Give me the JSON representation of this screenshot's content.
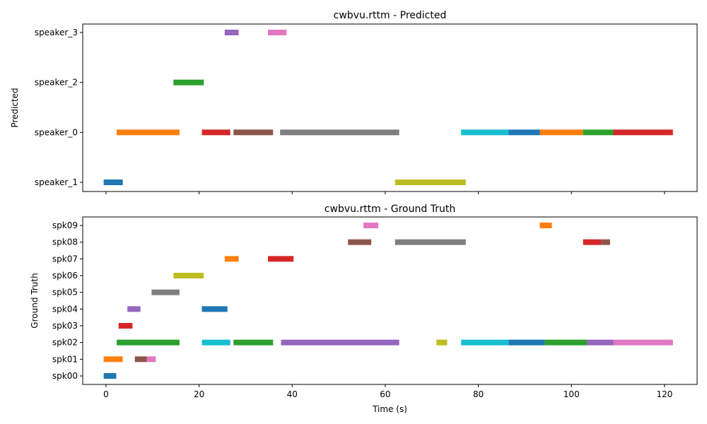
{
  "chart_data": [
    {
      "type": "timeline",
      "title": "cwbvu.rttm - Predicted",
      "xlabel": "",
      "ylabel": "Predicted",
      "xlim": [
        -5,
        127
      ],
      "x_ticks": [
        0,
        20,
        40,
        60,
        80,
        100,
        120
      ],
      "show_x_tick_labels": false,
      "categories": [
        "speaker_1",
        "speaker_0",
        "speaker_2",
        "speaker_3"
      ],
      "segments": [
        {
          "speaker": "speaker_3",
          "start": 25.5,
          "end": 28.5,
          "color": "#9467bd"
        },
        {
          "speaker": "speaker_3",
          "start": 34.8,
          "end": 38.8,
          "color": "#e377c2"
        },
        {
          "speaker": "speaker_2",
          "start": 14.5,
          "end": 21.0,
          "color": "#2ca02c"
        },
        {
          "speaker": "speaker_0",
          "start": 2.3,
          "end": 15.8,
          "color": "#ff7f0e"
        },
        {
          "speaker": "speaker_0",
          "start": 20.6,
          "end": 26.7,
          "color": "#d62728"
        },
        {
          "speaker": "speaker_0",
          "start": 27.4,
          "end": 35.9,
          "color": "#8c564b"
        },
        {
          "speaker": "speaker_0",
          "start": 37.4,
          "end": 63.0,
          "color": "#7f7f7f"
        },
        {
          "speaker": "speaker_0",
          "start": 76.3,
          "end": 86.5,
          "color": "#17becf"
        },
        {
          "speaker": "speaker_0",
          "start": 86.5,
          "end": 93.2,
          "color": "#1f77b4"
        },
        {
          "speaker": "speaker_0",
          "start": 93.2,
          "end": 102.5,
          "color": "#ff7f0e"
        },
        {
          "speaker": "speaker_0",
          "start": 102.5,
          "end": 109.0,
          "color": "#2ca02c"
        },
        {
          "speaker": "speaker_0",
          "start": 109.0,
          "end": 121.8,
          "color": "#d62728"
        },
        {
          "speaker": "speaker_1",
          "start": -0.5,
          "end": 3.6,
          "color": "#1f77b4"
        },
        {
          "speaker": "speaker_1",
          "start": 62.1,
          "end": 77.3,
          "color": "#bcbd22"
        }
      ]
    },
    {
      "type": "timeline",
      "title": "cwbvu.rttm - Ground Truth",
      "xlabel": "Time (s)",
      "ylabel": "Ground Truth",
      "xlim": [
        -5,
        127
      ],
      "x_ticks": [
        0,
        20,
        40,
        60,
        80,
        100,
        120
      ],
      "show_x_tick_labels": true,
      "categories": [
        "spk00",
        "spk01",
        "spk02",
        "spk03",
        "spk04",
        "spk05",
        "spk06",
        "spk07",
        "spk08",
        "spk09"
      ],
      "segments": [
        {
          "speaker": "spk09",
          "start": 55.3,
          "end": 58.5,
          "color": "#e377c2"
        },
        {
          "speaker": "spk09",
          "start": 93.2,
          "end": 95.8,
          "color": "#ff7f0e"
        },
        {
          "speaker": "spk08",
          "start": 52.0,
          "end": 57.0,
          "color": "#8c564b"
        },
        {
          "speaker": "spk08",
          "start": 62.1,
          "end": 77.3,
          "color": "#7f7f7f"
        },
        {
          "speaker": "spk08",
          "start": 102.5,
          "end": 106.4,
          "color": "#d62728"
        },
        {
          "speaker": "spk08",
          "start": 106.4,
          "end": 108.3,
          "color": "#8c564b"
        },
        {
          "speaker": "spk07",
          "start": 25.5,
          "end": 28.5,
          "color": "#ff7f0e"
        },
        {
          "speaker": "spk07",
          "start": 34.8,
          "end": 40.3,
          "color": "#d62728"
        },
        {
          "speaker": "spk06",
          "start": 14.5,
          "end": 21.0,
          "color": "#bcbd22"
        },
        {
          "speaker": "spk05",
          "start": 9.8,
          "end": 15.8,
          "color": "#7f7f7f"
        },
        {
          "speaker": "spk04",
          "start": 4.6,
          "end": 7.4,
          "color": "#9467bd"
        },
        {
          "speaker": "spk04",
          "start": 20.6,
          "end": 26.1,
          "color": "#1f77b4"
        },
        {
          "speaker": "spk03",
          "start": 2.7,
          "end": 5.7,
          "color": "#d62728"
        },
        {
          "speaker": "spk02",
          "start": 2.3,
          "end": 15.8,
          "color": "#2ca02c"
        },
        {
          "speaker": "spk02",
          "start": 20.6,
          "end": 26.7,
          "color": "#17becf"
        },
        {
          "speaker": "spk02",
          "start": 27.4,
          "end": 35.9,
          "color": "#2ca02c"
        },
        {
          "speaker": "spk02",
          "start": 37.6,
          "end": 63.0,
          "color": "#9467bd"
        },
        {
          "speaker": "spk02",
          "start": 71.0,
          "end": 73.3,
          "color": "#bcbd22"
        },
        {
          "speaker": "spk02",
          "start": 76.3,
          "end": 86.5,
          "color": "#17becf"
        },
        {
          "speaker": "spk02",
          "start": 86.5,
          "end": 94.3,
          "color": "#1f77b4"
        },
        {
          "speaker": "spk02",
          "start": 94.3,
          "end": 103.4,
          "color": "#2ca02c"
        },
        {
          "speaker": "spk02",
          "start": 103.4,
          "end": 109.0,
          "color": "#9467bd"
        },
        {
          "speaker": "spk02",
          "start": 109.0,
          "end": 121.8,
          "color": "#e377c2"
        },
        {
          "speaker": "spk01",
          "start": -0.5,
          "end": 3.6,
          "color": "#ff7f0e"
        },
        {
          "speaker": "spk01",
          "start": 6.2,
          "end": 8.8,
          "color": "#8c564b"
        },
        {
          "speaker": "spk01",
          "start": 8.8,
          "end": 10.7,
          "color": "#e377c2"
        },
        {
          "speaker": "spk00",
          "start": -0.5,
          "end": 2.2,
          "color": "#1f77b4"
        }
      ]
    }
  ]
}
